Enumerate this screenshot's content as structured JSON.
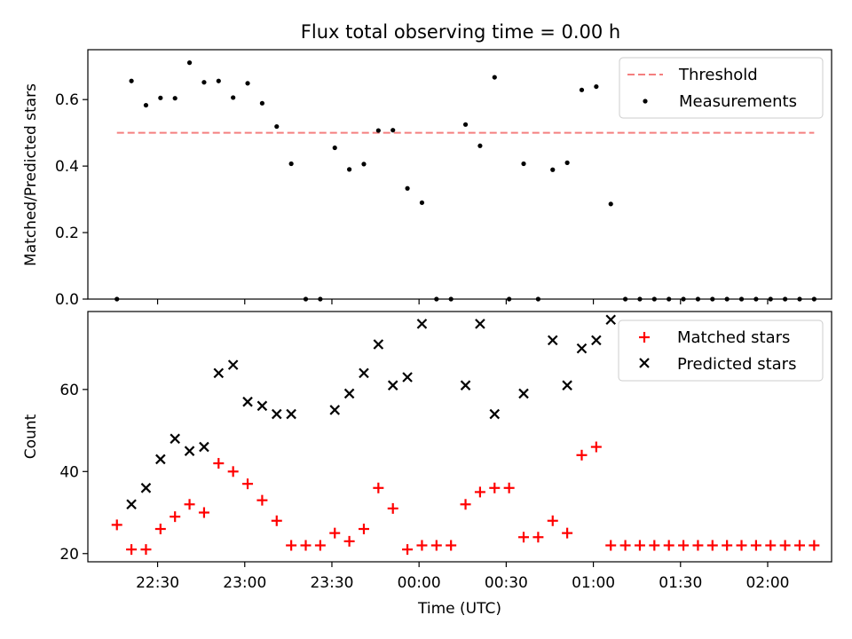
{
  "figure": {
    "title": "Flux total observing time = 0.00 h",
    "xlabel": "Time (UTC)"
  },
  "chart_data": [
    {
      "type": "scatter",
      "ylabel": "Matched/Predicted stars",
      "xlim": [
        "22:06",
        "02:22"
      ],
      "ylim": [
        0,
        0.75
      ],
      "yticks": [
        0.0,
        0.2,
        0.4,
        0.6
      ],
      "ytick_labels": [
        "0.0",
        "0.2",
        "0.4",
        "0.6"
      ],
      "xticks": [
        "22:30",
        "23:00",
        "23:30",
        "00:00",
        "00:30",
        "01:00",
        "01:30",
        "02:00"
      ],
      "legend_position": "top-right",
      "threshold": {
        "name": "Threshold",
        "y": 0.5,
        "x_start": "22:16",
        "x_end": "02:16",
        "color": "#f47f7f"
      },
      "series": [
        {
          "name": "Measurements",
          "color": "#000000",
          "x": [
            "22:16",
            "22:21",
            "22:26",
            "22:31",
            "22:36",
            "22:41",
            "22:46",
            "22:51",
            "22:56",
            "23:01",
            "23:06",
            "23:11",
            "23:16",
            "23:21",
            "23:26",
            "23:31",
            "23:36",
            "23:41",
            "23:46",
            "23:51",
            "23:56",
            "00:01",
            "00:06",
            "00:11",
            "00:16",
            "00:21",
            "00:26",
            "00:31",
            "00:36",
            "00:41",
            "00:46",
            "00:51",
            "00:56",
            "01:01",
            "01:06",
            "01:11",
            "01:16",
            "01:21",
            "01:26",
            "01:31",
            "01:36",
            "01:41",
            "01:46",
            "01:51",
            "01:56",
            "02:01",
            "02:06",
            "02:11",
            "02:16"
          ],
          "y": [
            0.0,
            0.656,
            0.583,
            0.605,
            0.604,
            0.711,
            0.652,
            0.656,
            0.606,
            0.649,
            0.589,
            0.519,
            0.407,
            0.0,
            0.0,
            0.455,
            0.39,
            0.406,
            0.507,
            0.508,
            0.333,
            0.29,
            0.0,
            0.0,
            0.525,
            0.461,
            0.667,
            0.0,
            0.407,
            0.0,
            0.389,
            0.41,
            0.629,
            0.639,
            0.286,
            0.0,
            0.0,
            0.0,
            0.0,
            0.0,
            0.0,
            0.0,
            0.0,
            0.0,
            0.0,
            0.0,
            0.0,
            0.0,
            0.0
          ]
        }
      ]
    },
    {
      "type": "scatter",
      "ylabel": "Count",
      "xlim": [
        "22:06",
        "02:22"
      ],
      "ylim": [
        18,
        79
      ],
      "yticks": [
        20,
        40,
        60
      ],
      "ytick_labels": [
        "20",
        "40",
        "60"
      ],
      "xticks": [
        "22:30",
        "23:00",
        "23:30",
        "00:00",
        "00:30",
        "01:00",
        "01:30",
        "02:00"
      ],
      "xtick_labels": [
        "22:30",
        "23:00",
        "23:30",
        "00:00",
        "00:30",
        "01:00",
        "01:30",
        "02:00"
      ],
      "legend_position": "top-right",
      "series": [
        {
          "name": "Matched stars",
          "marker": "plus",
          "color": "#ff0000",
          "x": [
            "22:16",
            "22:21",
            "22:26",
            "22:31",
            "22:36",
            "22:41",
            "22:46",
            "22:51",
            "22:56",
            "23:01",
            "23:06",
            "23:11",
            "23:16",
            "23:21",
            "23:26",
            "23:31",
            "23:36",
            "23:41",
            "23:46",
            "23:51",
            "23:56",
            "00:01",
            "00:06",
            "00:11",
            "00:16",
            "00:21",
            "00:26",
            "00:31",
            "00:36",
            "00:41",
            "00:46",
            "00:51",
            "00:56",
            "01:01",
            "01:06",
            "01:11",
            "01:16",
            "01:21",
            "01:26",
            "01:31",
            "01:36",
            "01:41",
            "01:46",
            "01:51",
            "01:56",
            "02:01",
            "02:06",
            "02:11",
            "02:16"
          ],
          "y": [
            27,
            21,
            21,
            26,
            29,
            32,
            30,
            42,
            40,
            37,
            33,
            28,
            22,
            22,
            22,
            25,
            23,
            26,
            36,
            31,
            21,
            22,
            22,
            22,
            32,
            35,
            36,
            36,
            24,
            24,
            28,
            25,
            44,
            46,
            22,
            22,
            22,
            22,
            22,
            22,
            22,
            22,
            22,
            22,
            22,
            22,
            22,
            22,
            22
          ]
        },
        {
          "name": "Predicted stars",
          "marker": "x",
          "color": "#000000",
          "x": [
            "22:21",
            "22:26",
            "22:31",
            "22:36",
            "22:41",
            "22:46",
            "22:51",
            "22:56",
            "23:01",
            "23:06",
            "23:11",
            "23:16",
            "23:31",
            "23:36",
            "23:41",
            "23:46",
            "23:51",
            "23:56",
            "00:01",
            "00:16",
            "00:21",
            "00:26",
            "00:36",
            "00:46",
            "00:51",
            "00:56",
            "01:01",
            "01:06"
          ],
          "y": [
            32,
            36,
            43,
            48,
            45,
            46,
            64,
            66,
            57,
            56,
            54,
            54,
            55,
            59,
            64,
            71,
            61,
            63,
            76,
            61,
            76,
            54,
            59,
            72,
            61,
            70,
            72,
            77
          ]
        }
      ]
    }
  ]
}
